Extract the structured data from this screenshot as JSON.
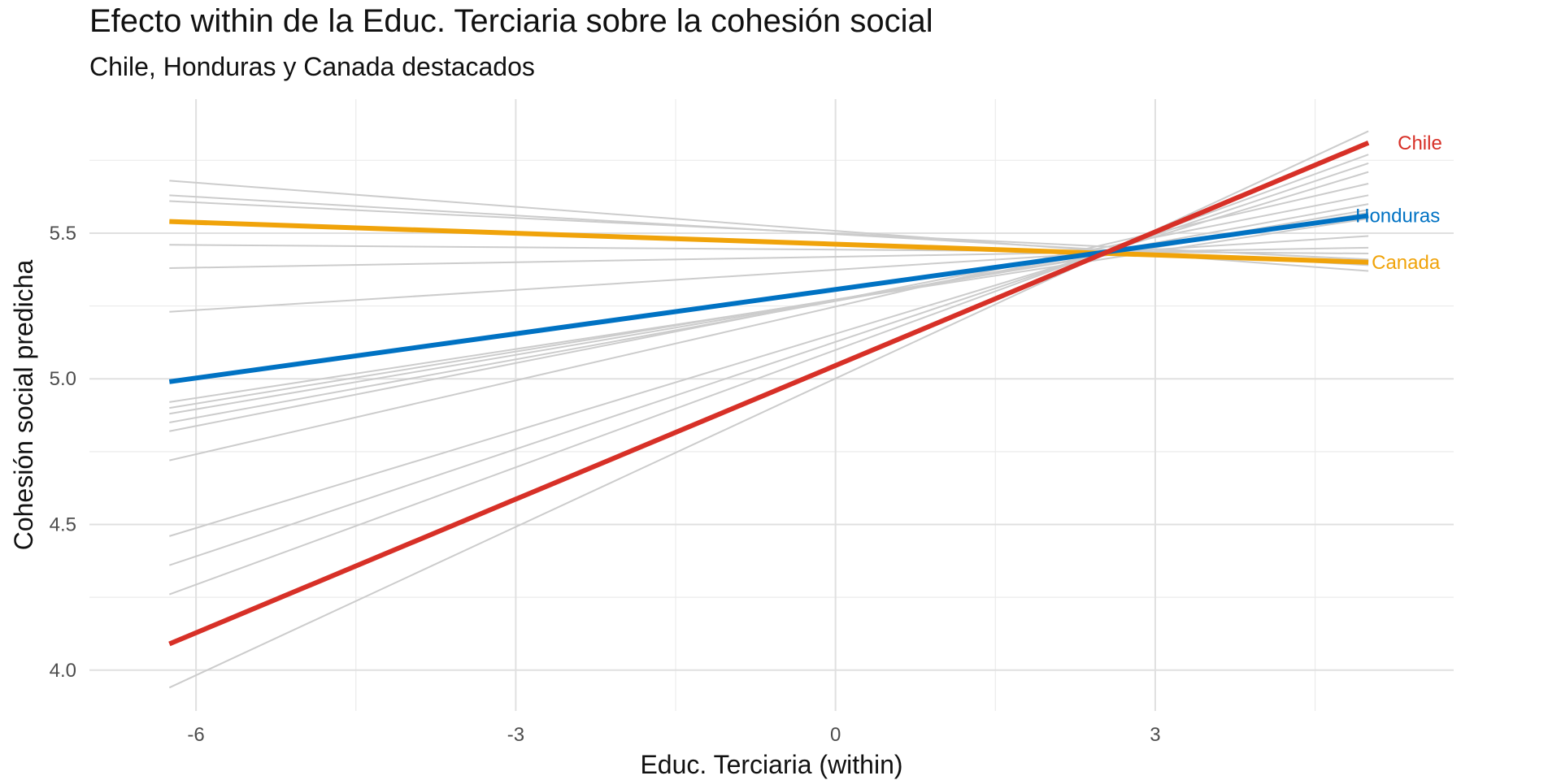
{
  "chart_data": {
    "type": "line",
    "title": "Efecto within de la Educ. Terciaria sobre la cohesión social",
    "subtitle": "Chile, Honduras y Canada destacados",
    "xlabel": "Educ. Terciaria (within)",
    "ylabel": "Cohesión social predicha",
    "xlim": [
      -7.0,
      5.8
    ],
    "ylim": [
      3.86,
      5.96
    ],
    "x_ticks": [
      -6,
      -3,
      0,
      3
    ],
    "x_tick_labels": [
      "-6",
      "-3",
      "0",
      "3"
    ],
    "y_ticks": [
      4.0,
      4.5,
      5.0,
      5.5
    ],
    "y_tick_labels": [
      "4.0",
      "4.5",
      "5.0",
      "5.5"
    ],
    "grid": true,
    "background_series_color": "#cccccc",
    "background_series": [
      {
        "x": [
          -6.25,
          5.0
        ],
        "y": [
          5.68,
          5.37
        ]
      },
      {
        "x": [
          -6.25,
          5.0
        ],
        "y": [
          5.63,
          5.39
        ]
      },
      {
        "x": [
          -6.25,
          5.0
        ],
        "y": [
          5.61,
          5.41
        ]
      },
      {
        "x": [
          -6.25,
          5.0
        ],
        "y": [
          5.46,
          5.43
        ]
      },
      {
        "x": [
          -6.25,
          5.0
        ],
        "y": [
          5.38,
          5.45
        ]
      },
      {
        "x": [
          -6.25,
          5.0
        ],
        "y": [
          5.23,
          5.49
        ]
      },
      {
        "x": [
          -6.25,
          5.0
        ],
        "y": [
          4.92,
          5.55
        ]
      },
      {
        "x": [
          -6.25,
          5.0
        ],
        "y": [
          4.9,
          5.57
        ]
      },
      {
        "x": [
          -6.25,
          5.0
        ],
        "y": [
          4.88,
          5.58
        ]
      },
      {
        "x": [
          -6.25,
          5.0
        ],
        "y": [
          4.85,
          5.6
        ]
      },
      {
        "x": [
          -6.25,
          5.0
        ],
        "y": [
          4.82,
          5.63
        ]
      },
      {
        "x": [
          -6.25,
          5.0
        ],
        "y": [
          4.72,
          5.67
        ]
      },
      {
        "x": [
          -6.25,
          5.0
        ],
        "y": [
          4.46,
          5.71
        ]
      },
      {
        "x": [
          -6.25,
          5.0
        ],
        "y": [
          4.36,
          5.74
        ]
      },
      {
        "x": [
          -6.25,
          5.0
        ],
        "y": [
          4.26,
          5.77
        ]
      },
      {
        "x": [
          -6.25,
          5.0
        ],
        "y": [
          3.94,
          5.85
        ]
      }
    ],
    "series": [
      {
        "name": "Canada",
        "color": "#f0a30a",
        "x": [
          -6.25,
          5.0
        ],
        "y": [
          5.54,
          5.4
        ]
      },
      {
        "name": "Honduras",
        "color": "#0072c3",
        "x": [
          -6.25,
          5.0
        ],
        "y": [
          4.99,
          5.56
        ]
      },
      {
        "name": "Chile",
        "color": "#d73027",
        "x": [
          -6.25,
          5.0
        ],
        "y": [
          4.09,
          5.81
        ]
      }
    ]
  }
}
